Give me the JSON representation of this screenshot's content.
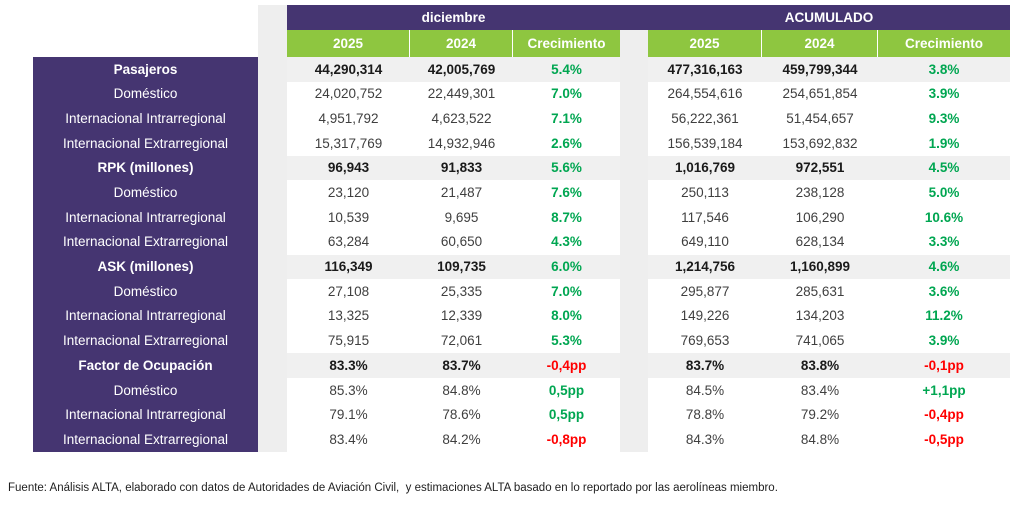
{
  "header": {
    "december_label": "diciembre",
    "accumulated_label": "ACUMULADO",
    "col_2025": "2025",
    "col_2024": "2024",
    "col_growth": "Crecimiento"
  },
  "table": {
    "rows": [
      {
        "label": "Pasajeros",
        "bold": true,
        "dec": {
          "y2025": "44,290,314",
          "y2024": "42,005,769",
          "growth": "5.4%",
          "growth_sign": "positive"
        },
        "acu": {
          "y2025": "477,316,163",
          "y2024": "459,799,344",
          "growth": "3.8%",
          "growth_sign": "positive"
        }
      },
      {
        "label": "Doméstico",
        "bold": false,
        "dec": {
          "y2025": "24,020,752",
          "y2024": "22,449,301",
          "growth": "7.0%",
          "growth_sign": "positive"
        },
        "acu": {
          "y2025": "264,554,616",
          "y2024": "254,651,854",
          "growth": "3.9%",
          "growth_sign": "positive"
        }
      },
      {
        "label": "Internacional Intrarregional",
        "bold": false,
        "dec": {
          "y2025": "4,951,792",
          "y2024": "4,623,522",
          "growth": "7.1%",
          "growth_sign": "positive"
        },
        "acu": {
          "y2025": "56,222,361",
          "y2024": "51,454,657",
          "growth": "9.3%",
          "growth_sign": "positive"
        }
      },
      {
        "label": "Internacional Extrarregional",
        "bold": false,
        "dec": {
          "y2025": "15,317,769",
          "y2024": "14,932,946",
          "growth": "2.6%",
          "growth_sign": "positive"
        },
        "acu": {
          "y2025": "156,539,184",
          "y2024": "153,692,832",
          "growth": "1.9%",
          "growth_sign": "positive"
        }
      },
      {
        "label": "RPK (millones)",
        "bold": true,
        "dec": {
          "y2025": "96,943",
          "y2024": "91,833",
          "growth": "5.6%",
          "growth_sign": "positive"
        },
        "acu": {
          "y2025": "1,016,769",
          "y2024": "972,551",
          "growth": "4.5%",
          "growth_sign": "positive"
        }
      },
      {
        "label": "Doméstico",
        "bold": false,
        "dec": {
          "y2025": "23,120",
          "y2024": "21,487",
          "growth": "7.6%",
          "growth_sign": "positive"
        },
        "acu": {
          "y2025": "250,113",
          "y2024": "238,128",
          "growth": "5.0%",
          "growth_sign": "positive"
        }
      },
      {
        "label": "Internacional Intrarregional",
        "bold": false,
        "dec": {
          "y2025": "10,539",
          "y2024": "9,695",
          "growth": "8.7%",
          "growth_sign": "positive"
        },
        "acu": {
          "y2025": "117,546",
          "y2024": "106,290",
          "growth": "10.6%",
          "growth_sign": "positive"
        }
      },
      {
        "label": "Internacional Extrarregional",
        "bold": false,
        "dec": {
          "y2025": "63,284",
          "y2024": "60,650",
          "growth": "4.3%",
          "growth_sign": "positive"
        },
        "acu": {
          "y2025": "649,110",
          "y2024": "628,134",
          "growth": "3.3%",
          "growth_sign": "positive"
        }
      },
      {
        "label": "ASK (millones)",
        "bold": true,
        "dec": {
          "y2025": "116,349",
          "y2024": "109,735",
          "growth": "6.0%",
          "growth_sign": "positive"
        },
        "acu": {
          "y2025": "1,214,756",
          "y2024": "1,160,899",
          "growth": "4.6%",
          "growth_sign": "positive"
        }
      },
      {
        "label": "Doméstico",
        "bold": false,
        "dec": {
          "y2025": "27,108",
          "y2024": "25,335",
          "growth": "7.0%",
          "growth_sign": "positive"
        },
        "acu": {
          "y2025": "295,877",
          "y2024": "285,631",
          "growth": "3.6%",
          "growth_sign": "positive"
        }
      },
      {
        "label": "Internacional Intrarregional",
        "bold": false,
        "dec": {
          "y2025": "13,325",
          "y2024": "12,339",
          "growth": "8.0%",
          "growth_sign": "positive"
        },
        "acu": {
          "y2025": "149,226",
          "y2024": "134,203",
          "growth": "11.2%",
          "growth_sign": "positive"
        }
      },
      {
        "label": "Internacional Extrarregional",
        "bold": false,
        "dec": {
          "y2025": "75,915",
          "y2024": "72,061",
          "growth": "5.3%",
          "growth_sign": "positive"
        },
        "acu": {
          "y2025": "769,653",
          "y2024": "741,065",
          "growth": "3.9%",
          "growth_sign": "positive"
        }
      },
      {
        "label": "Factor de Ocupación",
        "bold": true,
        "dec": {
          "y2025": "83.3%",
          "y2024": "83.7%",
          "growth": "-0,4pp",
          "growth_sign": "negative"
        },
        "acu": {
          "y2025": "83.7%",
          "y2024": "83.8%",
          "growth": "-0,1pp",
          "growth_sign": "negative"
        }
      },
      {
        "label": "Doméstico",
        "bold": false,
        "dec": {
          "y2025": "85.3%",
          "y2024": "84.8%",
          "growth": "0,5pp",
          "growth_sign": "positive"
        },
        "acu": {
          "y2025": "84.5%",
          "y2024": "83.4%",
          "growth": "+1,1pp",
          "growth_sign": "positive"
        }
      },
      {
        "label": "Internacional Intrarregional",
        "bold": false,
        "dec": {
          "y2025": "79.1%",
          "y2024": "78.6%",
          "growth": "0,5pp",
          "growth_sign": "positive"
        },
        "acu": {
          "y2025": "78.8%",
          "y2024": "79.2%",
          "growth": "-0,4pp",
          "growth_sign": "negative"
        }
      },
      {
        "label": "Internacional Extrarregional",
        "bold": false,
        "dec": {
          "y2025": "83.4%",
          "y2024": "84.2%",
          "growth": "-0,8pp",
          "growth_sign": "negative"
        },
        "acu": {
          "y2025": "84.3%",
          "y2024": "84.8%",
          "growth": "-0,5pp",
          "growth_sign": "negative"
        }
      }
    ]
  },
  "footer": {
    "source": "Fuente: Análisis ALTA, elaborado con datos de Autoridades de Aviación Civil,  y estimaciones ALTA basado en lo reportado por las aerolíneas miembro."
  },
  "colors": {
    "purple": "#453571",
    "green_header": "#8EC640",
    "positive": "#00A651",
    "negative": "#FF0000",
    "row_shade": "#F0F0F0"
  }
}
